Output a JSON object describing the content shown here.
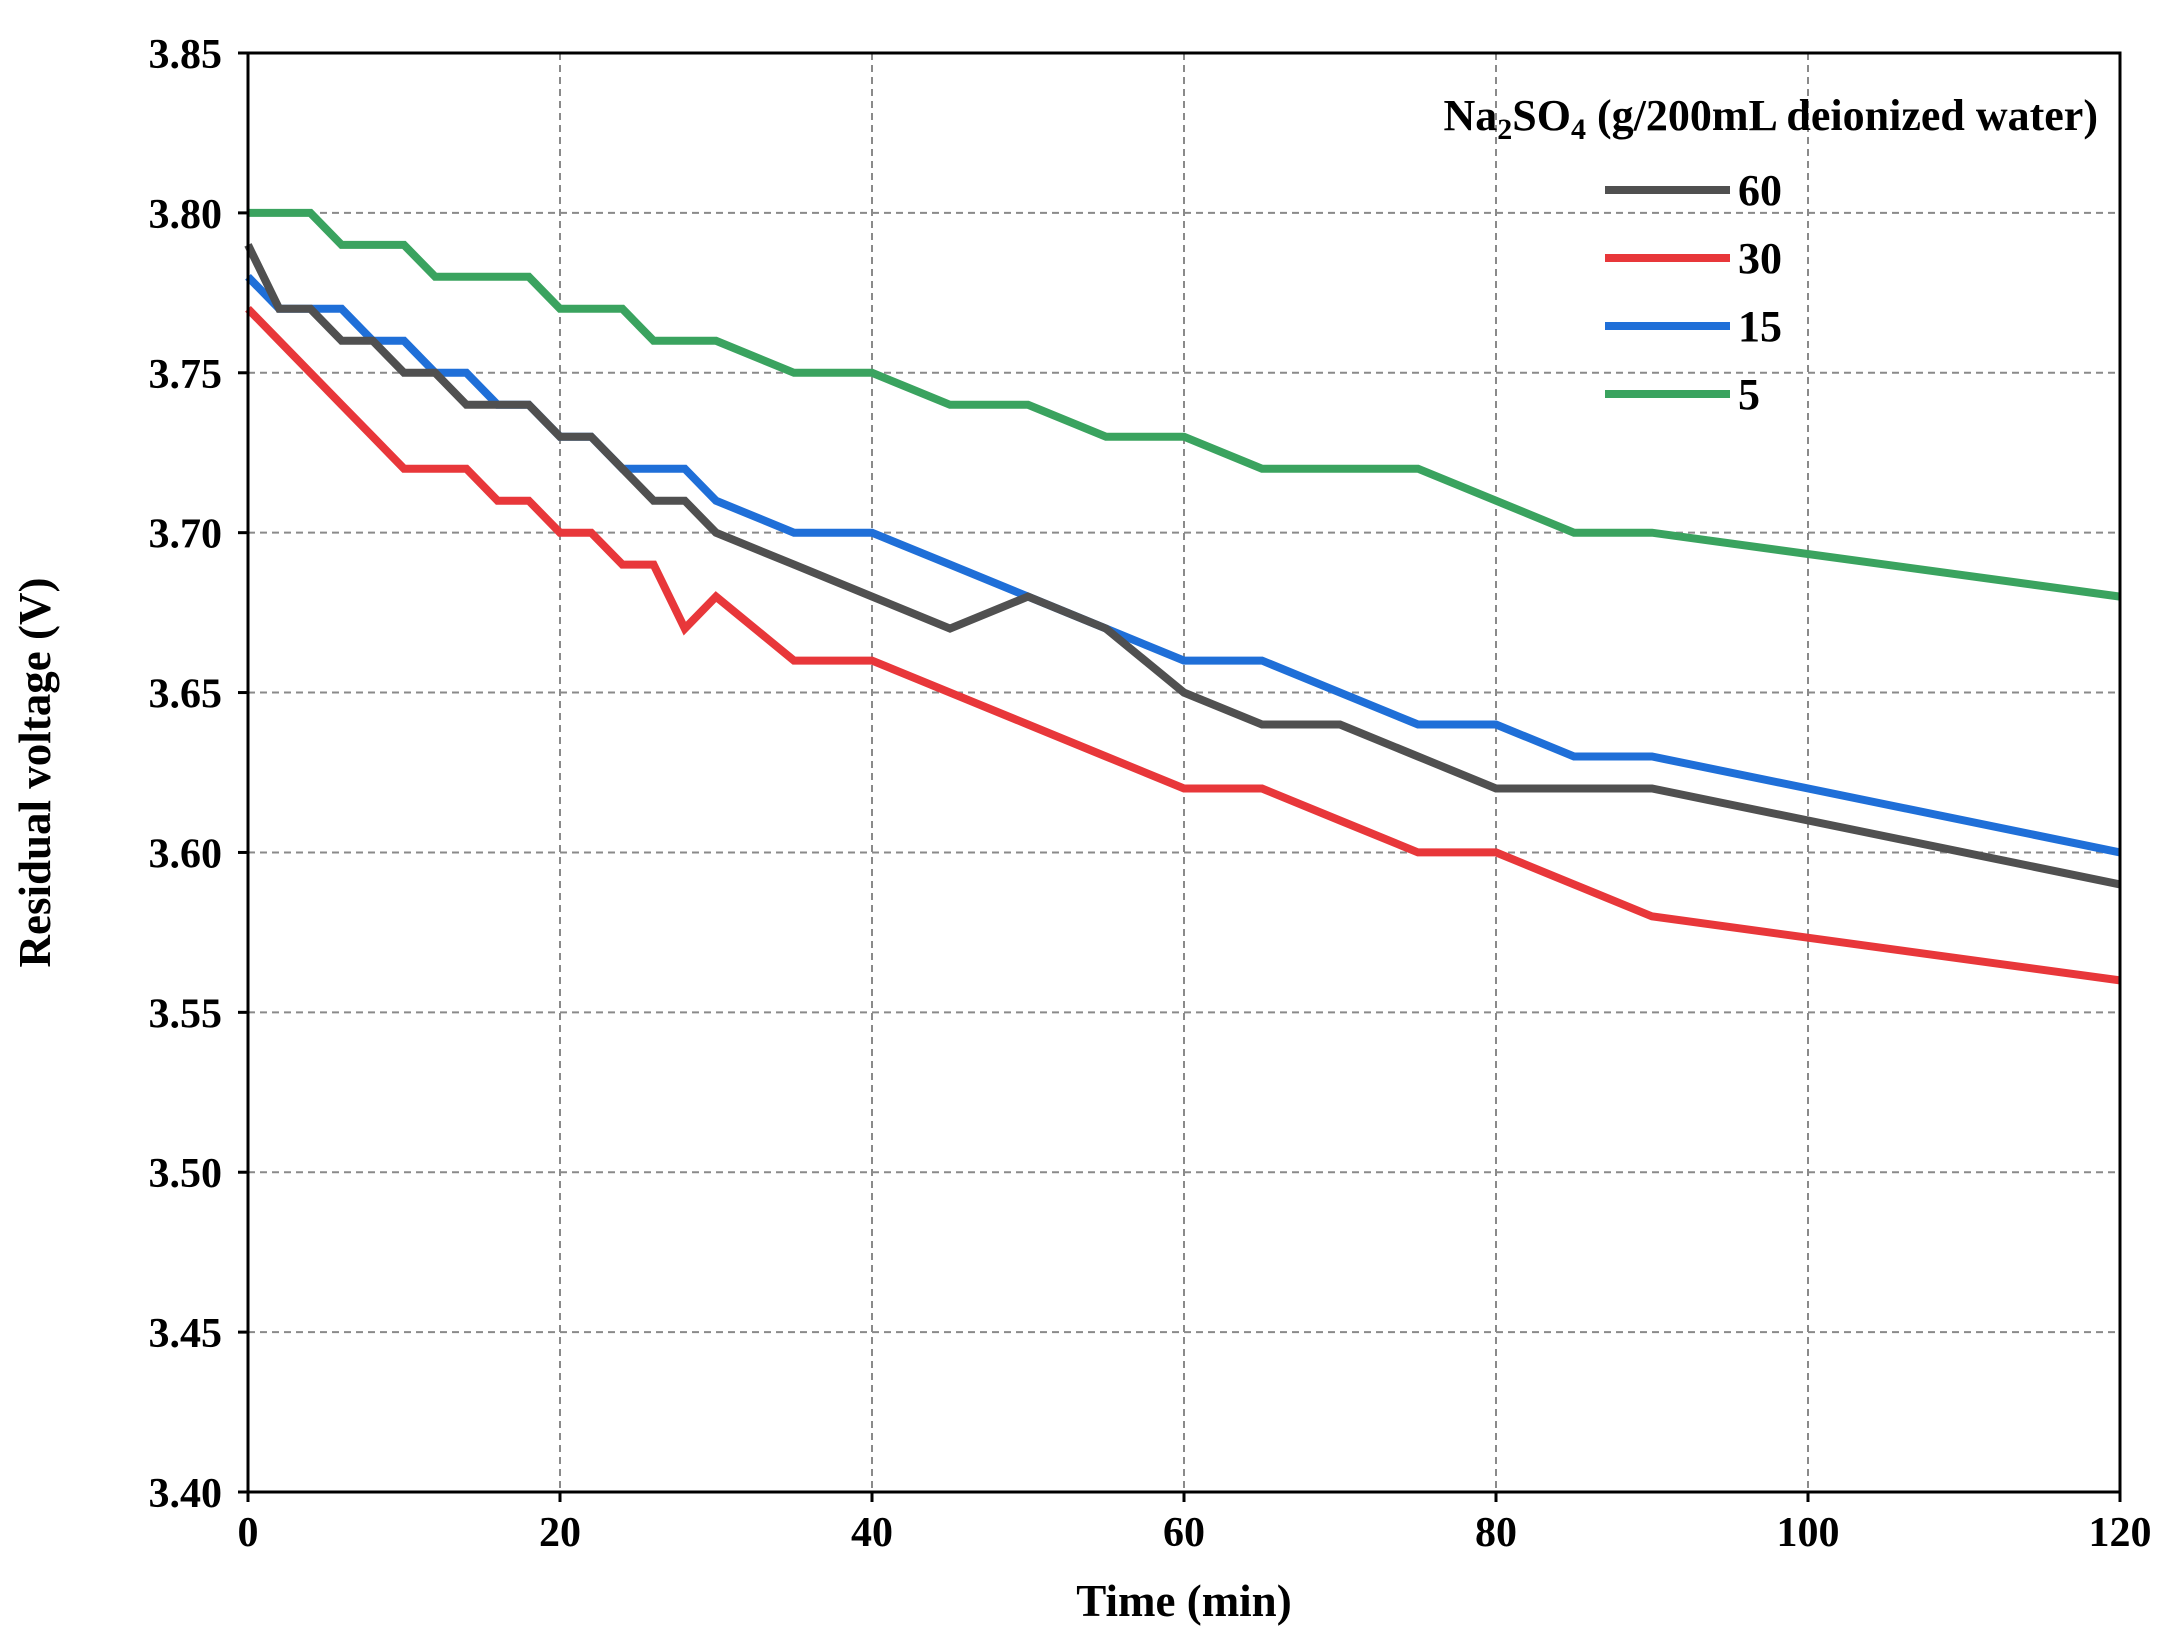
{
  "chart_data": {
    "type": "line",
    "xlabel": "Time (min)",
    "ylabel": "Residual voltage (V)",
    "xlim": [
      0,
      120
    ],
    "ylim": [
      3.4,
      3.85
    ],
    "xticks": [
      0,
      20,
      40,
      60,
      80,
      100,
      120
    ],
    "xtick_labels": [
      "0",
      "20",
      "40",
      "60",
      "80",
      "100",
      "120"
    ],
    "yticks": [
      3.4,
      3.45,
      3.5,
      3.55,
      3.6,
      3.65,
      3.7,
      3.75,
      3.8,
      3.85
    ],
    "ytick_labels": [
      "3.40",
      "3.45",
      "3.50",
      "3.55",
      "3.60",
      "3.65",
      "3.70",
      "3.75",
      "3.80",
      "3.85"
    ],
    "grid": true,
    "legend": {
      "title_prefix": "Na",
      "title_sub1": "2",
      "title_mid": "SO",
      "title_sub2": "4",
      "title_suffix": " (g/200mL deionized water)",
      "placement": "top-right"
    },
    "series": [
      {
        "name": "60",
        "color": "#505050",
        "x": [
          0,
          2,
          4,
          6,
          8,
          10,
          12,
          14,
          16,
          18,
          20,
          22,
          24,
          26,
          28,
          30,
          35,
          40,
          45,
          50,
          55,
          60,
          65,
          70,
          75,
          80,
          85,
          90,
          120
        ],
        "y": [
          3.79,
          3.77,
          3.77,
          3.76,
          3.76,
          3.75,
          3.75,
          3.74,
          3.74,
          3.74,
          3.73,
          3.73,
          3.72,
          3.71,
          3.71,
          3.7,
          3.69,
          3.68,
          3.67,
          3.68,
          3.67,
          3.65,
          3.64,
          3.64,
          3.63,
          3.62,
          3.62,
          3.62,
          3.59
        ]
      },
      {
        "name": "30",
        "color": "#e8373a",
        "x": [
          0,
          2,
          4,
          6,
          8,
          10,
          12,
          14,
          16,
          18,
          20,
          22,
          24,
          26,
          28,
          30,
          35,
          40,
          45,
          50,
          55,
          60,
          65,
          70,
          75,
          80,
          85,
          90,
          120
        ],
        "y": [
          3.77,
          3.76,
          3.75,
          3.74,
          3.73,
          3.72,
          3.72,
          3.72,
          3.71,
          3.71,
          3.7,
          3.7,
          3.69,
          3.69,
          3.67,
          3.68,
          3.66,
          3.66,
          3.65,
          3.64,
          3.63,
          3.62,
          3.62,
          3.61,
          3.6,
          3.6,
          3.59,
          3.58,
          3.56
        ]
      },
      {
        "name": "15",
        "color": "#1f6fd8",
        "x": [
          0,
          2,
          4,
          6,
          8,
          10,
          12,
          14,
          16,
          18,
          20,
          22,
          24,
          26,
          28,
          30,
          35,
          40,
          45,
          50,
          55,
          60,
          65,
          70,
          75,
          80,
          85,
          90,
          120
        ],
        "y": [
          3.78,
          3.77,
          3.77,
          3.77,
          3.76,
          3.76,
          3.75,
          3.75,
          3.74,
          3.74,
          3.73,
          3.73,
          3.72,
          3.72,
          3.72,
          3.71,
          3.7,
          3.7,
          3.69,
          3.68,
          3.67,
          3.66,
          3.66,
          3.65,
          3.64,
          3.64,
          3.63,
          3.63,
          3.6
        ]
      },
      {
        "name": "5",
        "color": "#3aa35f",
        "x": [
          0,
          2,
          4,
          6,
          8,
          10,
          12,
          14,
          16,
          18,
          20,
          22,
          24,
          26,
          28,
          30,
          35,
          40,
          45,
          50,
          55,
          60,
          65,
          70,
          75,
          80,
          85,
          90,
          120
        ],
        "y": [
          3.8,
          3.8,
          3.8,
          3.79,
          3.79,
          3.79,
          3.78,
          3.78,
          3.78,
          3.78,
          3.77,
          3.77,
          3.77,
          3.76,
          3.76,
          3.76,
          3.75,
          3.75,
          3.74,
          3.74,
          3.73,
          3.73,
          3.72,
          3.72,
          3.72,
          3.71,
          3.7,
          3.7,
          3.68
        ]
      }
    ]
  }
}
